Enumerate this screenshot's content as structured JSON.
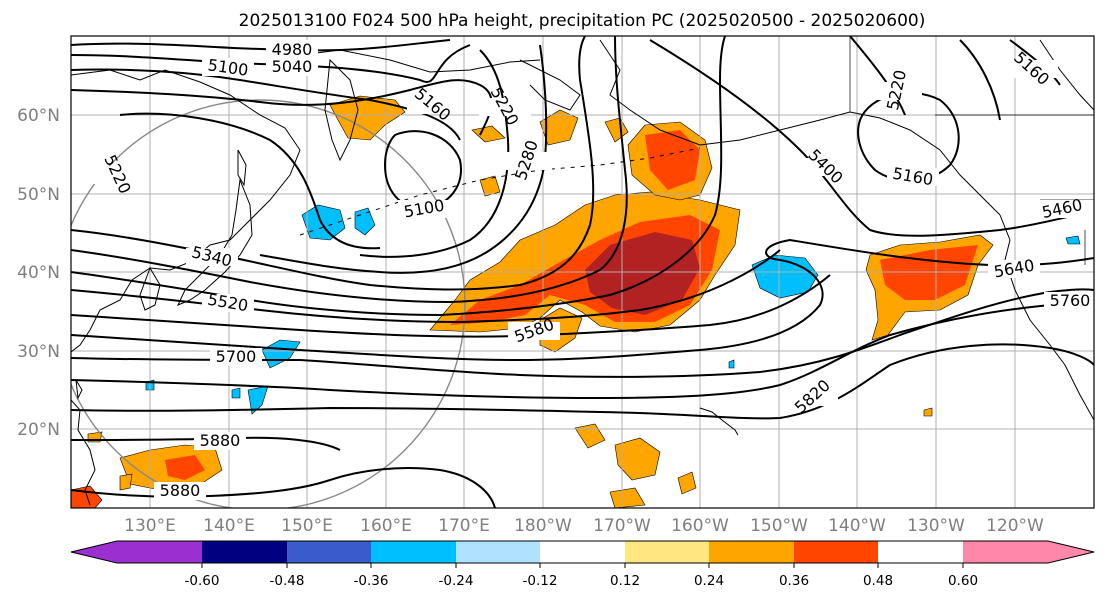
{
  "title": "2025013100 F024 500 hPa height, precipitation PC (2025020500 - 2025020600)",
  "latitude_labels": [
    "60°N",
    "50°N",
    "40°N",
    "30°N",
    "20°N"
  ],
  "longitude_labels": [
    "130°E",
    "140°E",
    "150°E",
    "160°E",
    "170°E",
    "180°W",
    "170°W",
    "160°W",
    "150°W",
    "140°W",
    "130°W",
    "120°W"
  ],
  "contour_labels": [
    "4980",
    "5040",
    "5100",
    "5160",
    "5220",
    "5280",
    "5100",
    "5220",
    "5160",
    "5400",
    "5220",
    "5160",
    "5340",
    "5460",
    "5520",
    "5580",
    "5640",
    "5700",
    "5760",
    "5820",
    "5880",
    "5880"
  ],
  "colorbar": {
    "tick_labels": [
      "-0.60",
      "-0.48",
      "-0.36",
      "-0.24",
      "-0.12",
      "0.12",
      "0.24",
      "0.36",
      "0.48",
      "0.60"
    ],
    "colors": [
      "#9b30d0",
      "#000080",
      "#3a5bcc",
      "#00bfff",
      "#b0e2ff",
      "#ffffff",
      "#ffe680",
      "#ffa500",
      "#ff4500",
      "#b22222",
      "#ff88aa"
    ]
  },
  "shading_colors": {
    "light_orange": "#ffe680",
    "orange": "#ffa500",
    "red_orange": "#ff4500",
    "dark_red": "#b22222",
    "deep_sky_blue": "#00bfff",
    "light_blue": "#b0e2ff"
  }
}
